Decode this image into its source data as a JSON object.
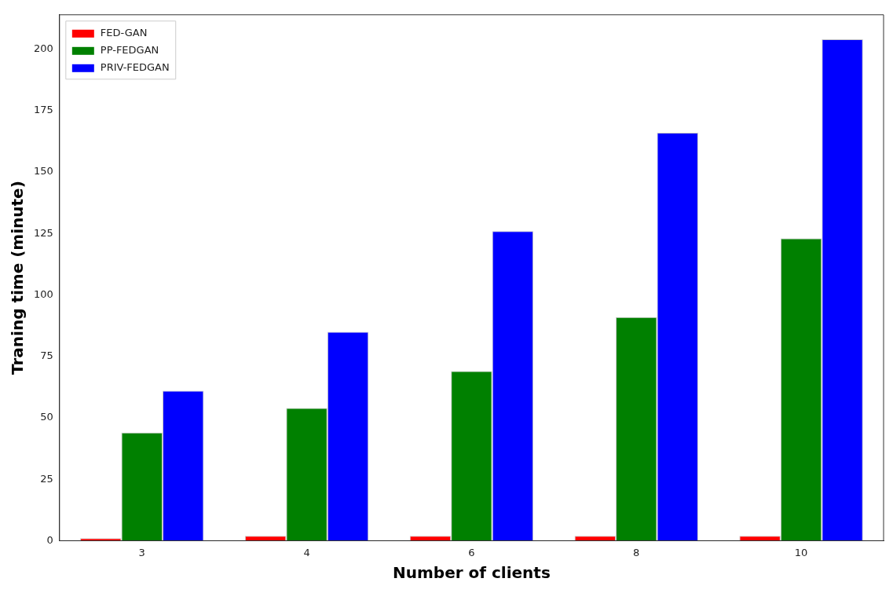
{
  "chart_data": {
    "type": "bar",
    "xlabel": "Number of clients",
    "ylabel": "Traning time (minute)",
    "categories": [
      "3",
      "4",
      "6",
      "8",
      "10"
    ],
    "series": [
      {
        "name": "FED-GAN",
        "color": "#ff0000",
        "values": [
          1,
          2,
          2,
          2,
          2
        ]
      },
      {
        "name": "PP-FEDGAN",
        "color": "#008000",
        "values": [
          44,
          54,
          69,
          91,
          123
        ]
      },
      {
        "name": "PRIV-FEDGAN",
        "color": "#0000ff",
        "values": [
          61,
          85,
          126,
          166,
          204
        ]
      }
    ],
    "ylim": [
      0,
      214
    ],
    "yticks": [
      0,
      25,
      50,
      75,
      100,
      125,
      150,
      175,
      200
    ],
    "grid": false,
    "legend": "top left"
  }
}
